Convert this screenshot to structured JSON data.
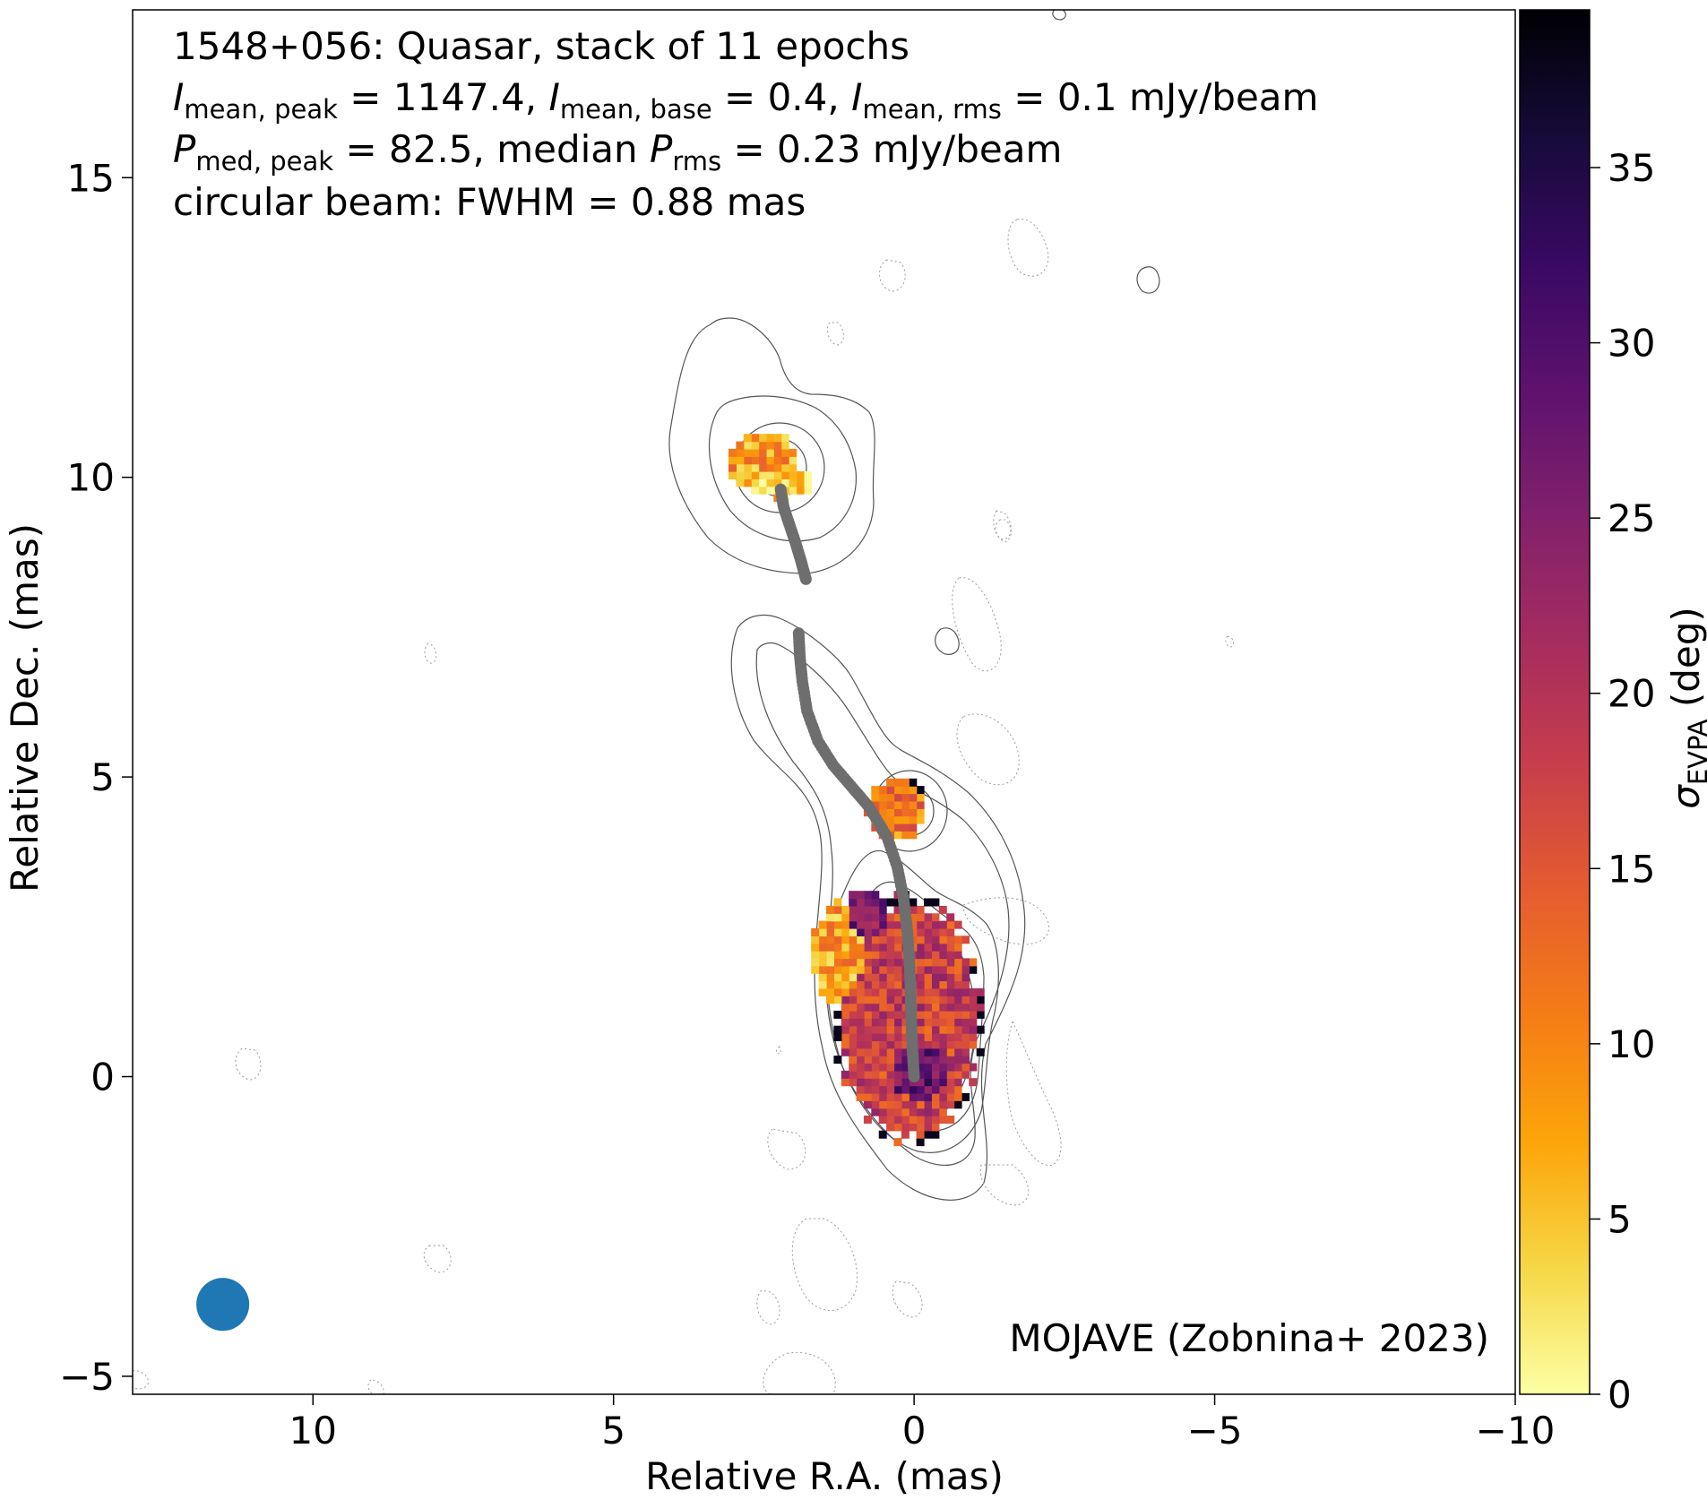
{
  "chart_data": {
    "type": "heatmap",
    "annotation_lines": [
      "1548+056: Quasar, stack of 11 epochs",
      "I_mean,peak = 1147.4, I_mean,base = 0.4, I_mean,rms = 0.1 mJy/beam",
      "P_med,peak = 82.5, median P_rms = 0.23 mJy/beam",
      "circular beam: FWHM = 0.88 mas"
    ],
    "stats": {
      "I_mean_peak": "1147.4",
      "I_mean_base": "0.4",
      "I_mean_rms": "0.1",
      "P_med_peak": "82.5",
      "P_rms_median": "0.23",
      "beam_fwhm": "0.88"
    },
    "credit": "MOJAVE (Zobnina+ 2023)",
    "xlabel": "Relative R.A. (mas)",
    "ylabel": "Relative Dec. (mas)",
    "colorbar_label": "σ_EVPA (deg)",
    "colorbar_sub": "EVPA",
    "xlim": [
      13.0,
      -10.0
    ],
    "ylim": [
      -5.3,
      17.8
    ],
    "x_ticks": [
      10,
      5,
      0,
      -5,
      -10
    ],
    "x_tick_labels": [
      "10",
      "5",
      "0",
      "−5",
      "−10"
    ],
    "y_ticks": [
      -5,
      0,
      5,
      10,
      15
    ],
    "y_tick_labels": [
      "−5",
      "0",
      "5",
      "10",
      "15"
    ],
    "colorbar_range": [
      0,
      39.5
    ],
    "colorbar_ticks": [
      0,
      5,
      10,
      15,
      20,
      25,
      30,
      35
    ],
    "colorbar_tick_labels": [
      "0",
      "5",
      "10",
      "15",
      "20",
      "25",
      "30",
      "35"
    ],
    "colormap": "inferno_r",
    "colormap_stops": [
      "#fcffa4",
      "#f6d746",
      "#fca50a",
      "#f57d15",
      "#e55c30",
      "#c73e4c",
      "#a52c60",
      "#81206c",
      "#5c126e",
      "#390963",
      "#160b39",
      "#000004"
    ],
    "beam": {
      "x": 11.5,
      "y": -3.8,
      "fwhm": 0.88,
      "color": "#1f77b4"
    },
    "ridge_line": {
      "color": "#6e6e6e",
      "x": [
        0.0,
        0.03,
        0.05,
        0.06,
        0.08,
        0.12,
        0.18,
        0.28,
        0.45,
        0.75,
        1.05,
        1.35,
        1.6,
        1.78,
        1.86,
        1.9,
        1.92
      ],
      "y": [
        0.0,
        0.5,
        1.0,
        1.5,
        2.0,
        2.5,
        3.0,
        3.5,
        4.0,
        4.5,
        4.85,
        5.2,
        5.6,
        6.1,
        6.6,
        7.0,
        7.4
      ]
    },
    "ridge_line_2": {
      "color": "#6e6e6e",
      "x": [
        1.8,
        1.88,
        1.97,
        2.07,
        2.17,
        2.22
      ],
      "y": [
        8.3,
        8.6,
        8.9,
        9.2,
        9.5,
        9.8
      ]
    },
    "sigma_regions": [
      {
        "cx": 0.1,
        "cy": 0.9,
        "rx": 1.25,
        "ry": 2.1,
        "value": 18
      },
      {
        "cx": 0.0,
        "cy": 0.2,
        "rx": 0.85,
        "ry": 1.0,
        "value": 28
      },
      {
        "cx": 1.2,
        "cy": 2.0,
        "rx": 0.5,
        "ry": 0.9,
        "value": 8
      },
      {
        "cx": 0.8,
        "cy": 2.6,
        "rx": 0.45,
        "ry": 0.5,
        "value": 26
      },
      {
        "cx": 0.3,
        "cy": 4.4,
        "rx": 0.5,
        "ry": 0.55,
        "value": 11
      },
      {
        "cx": 2.5,
        "cy": 10.2,
        "rx": 0.6,
        "ry": 0.5,
        "value": 8
      },
      {
        "cx": 2.2,
        "cy": 9.85,
        "rx": 0.6,
        "ry": 0.28,
        "value": 5
      }
    ]
  }
}
